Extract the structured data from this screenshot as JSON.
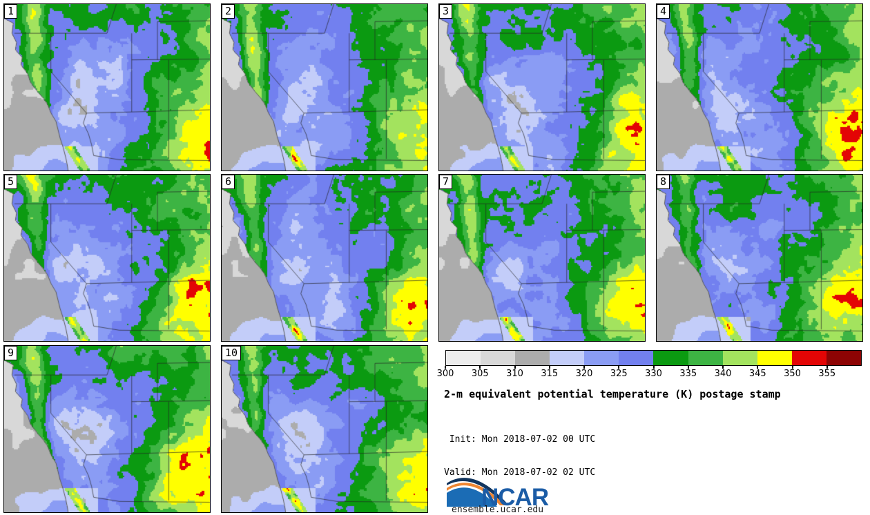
{
  "heading": {
    "title": "2-m equivalent potential temperature (K) postage stamp",
    "init_line": " Init: Mon 2018-07-02 00 UTC",
    "valid_line": "Valid: Mon 2018-07-02 02 UTC"
  },
  "panels": [
    {
      "label": "1"
    },
    {
      "label": "2"
    },
    {
      "label": "3"
    },
    {
      "label": "4"
    },
    {
      "label": "5"
    },
    {
      "label": "6"
    },
    {
      "label": "7"
    },
    {
      "label": "8"
    },
    {
      "label": "9"
    },
    {
      "label": "10"
    }
  ],
  "colorbar": {
    "tick_labels": [
      "300",
      "305",
      "310",
      "315",
      "320",
      "325",
      "330",
      "335",
      "340",
      "345",
      "350",
      "355"
    ],
    "segment_colors": [
      "#ededed",
      "#d8d8d8",
      "#acacac",
      "#c3cdf9",
      "#8a9cf4",
      "#7280ef",
      "#0b9a11",
      "#3db443",
      "#a3e35e",
      "#ffff00",
      "#e30505",
      "#8d0404"
    ]
  },
  "logo": {
    "text": "NCAR",
    "site": "ensemble.ucar.edu",
    "blue": "#1b6cb5",
    "navy": "#12355e",
    "orange": "#ef8632",
    "text_blue": "#1b5ca6"
  },
  "map": {
    "thresholds": [
      305,
      310,
      315,
      320,
      325,
      330,
      335,
      340,
      345,
      350,
      355
    ],
    "border_color": "rgba(35,35,35,0.85)",
    "coast_color": "#5a5a5a"
  },
  "chart_data": {
    "type": "heatmap",
    "title": "2-m equivalent potential temperature (K) postage stamp",
    "subtitle_lines": [
      "Init: Mon 2018-07-02 00 UTC",
      "Valid: Mon 2018-07-02 02 UTC"
    ],
    "panel_labels": [
      "1",
      "2",
      "3",
      "4",
      "5",
      "6",
      "7",
      "8",
      "9",
      "10"
    ],
    "layout": "10 ensemble-member map stamps in a 4x3 grid over the western United States",
    "colorbar_ticks": [
      300,
      305,
      310,
      315,
      320,
      325,
      330,
      335,
      340,
      345,
      350,
      355
    ],
    "colorbar_range": [
      300,
      360
    ],
    "units": "K",
    "legend_position": "right of row 3, above title",
    "qualitative_field": "gray 300-315 over Pacific, blue 315-330 over Great Basin/Arizona, green 330-340 over northern tier and Sierra flanks, yellow-green/yellow 340-350 along Sierra Nevada and Colorado/New Mexico, red and dark red 350-360 spots over the southeast quadrant"
  }
}
